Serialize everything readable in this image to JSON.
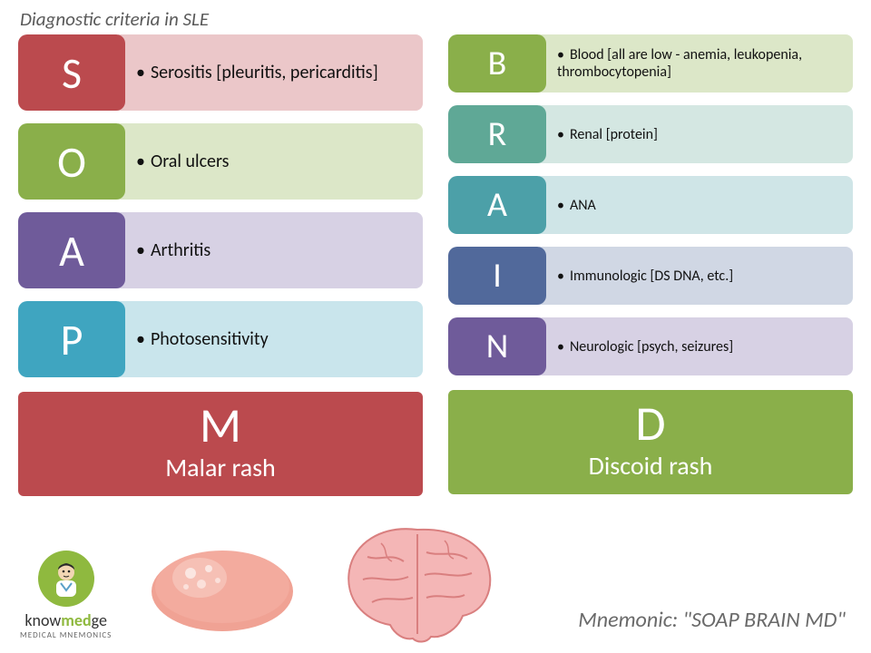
{
  "title": "Diagnostic criteria in SLE",
  "mnemonic_line": "Mnemonic: \"SOAP BRAIN MD\"",
  "logo": {
    "brand_pre": "know",
    "brand_accent": "med",
    "brand_post": "ge",
    "sub": "MEDICAL MNEMONICS"
  },
  "left_big": {
    "letter": "M",
    "label": "Malar rash",
    "bg": "#bb4a4e"
  },
  "right_big": {
    "letter": "D",
    "label": "Discoid rash",
    "bg": "#8aaf4a"
  },
  "left": [
    {
      "letter": "S",
      "desc": "Serositis [pleuritis, pericarditis]",
      "letter_bg": "#bb4a4e",
      "desc_bg": "#ebc7c9"
    },
    {
      "letter": "O",
      "desc": "Oral ulcers",
      "letter_bg": "#8aaf4a",
      "desc_bg": "#dce7c8"
    },
    {
      "letter": "A",
      "desc": "Arthritis",
      "letter_bg": "#6f5b9a",
      "desc_bg": "#d7d1e4"
    },
    {
      "letter": "P",
      "desc": "Photosensitivity",
      "letter_bg": "#3fa5c0",
      "desc_bg": "#c9e5ec"
    }
  ],
  "right": [
    {
      "letter": "B",
      "desc": "Blood [all are low - anemia, leukopenia, thrombocytopenia]",
      "letter_bg": "#8aaf4a",
      "desc_bg": "#dce7c8"
    },
    {
      "letter": "R",
      "desc": "Renal [protein]",
      "letter_bg": "#5fa896",
      "desc_bg": "#d4e7e2"
    },
    {
      "letter": "A",
      "desc": "ANA",
      "letter_bg": "#4ca0a8",
      "desc_bg": "#cfe5e7"
    },
    {
      "letter": "I",
      "desc": "Immunologic [DS DNA, etc.]",
      "letter_bg": "#51699b",
      "desc_bg": "#d0d7e4"
    },
    {
      "letter": "N",
      "desc": "Neurologic [psych, seizures]",
      "letter_bg": "#6f5b9a",
      "desc_bg": "#d7d1e4"
    }
  ],
  "colors": {
    "soap_fill": "#f0a294",
    "soap_bubble": "#f6c9bf",
    "brain_fill": "#f4b6b6",
    "brain_line": "#d97f7f"
  }
}
